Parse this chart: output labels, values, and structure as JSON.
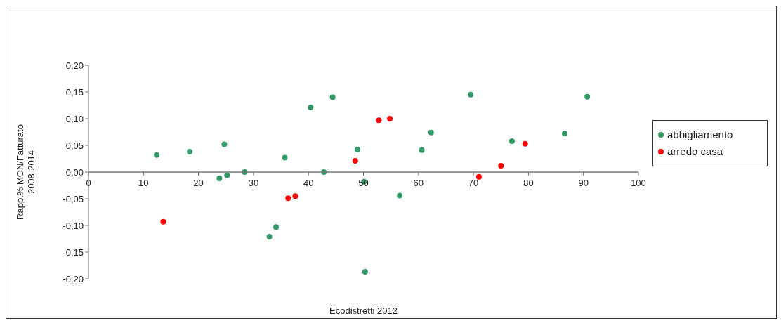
{
  "chart_data": {
    "type": "scatter",
    "xlabel": "Ecodistretti 2012",
    "ylabel": "Rapp.% MON/Fatturato\n2008-2014",
    "xlim": [
      0,
      100
    ],
    "xticks": [
      0,
      10,
      20,
      30,
      40,
      50,
      60,
      70,
      80,
      90,
      100
    ],
    "ylim": [
      -0.2,
      0.2
    ],
    "yticks": [
      {
        "value": -0.2,
        "label": "-0,20"
      },
      {
        "value": -0.15,
        "label": "-0,15"
      },
      {
        "value": -0.1,
        "label": "-0,10"
      },
      {
        "value": -0.05,
        "label": "-0,05"
      },
      {
        "value": 0,
        "label": "0,00"
      },
      {
        "value": 0.05,
        "label": "0,05"
      },
      {
        "value": 0.1,
        "label": "0,10"
      },
      {
        "value": 0.15,
        "label": "0,15"
      },
      {
        "value": 0.2,
        "label": "0,20"
      }
    ],
    "grid": false,
    "legend": "right",
    "marker": "circle",
    "series": [
      {
        "name": "abbigliamento",
        "color": "#339966",
        "x": [
          12.4,
          18.4,
          23.8,
          24.7,
          25.2,
          28.4,
          32.9,
          34.1,
          35.7,
          40.4,
          42.8,
          44.4,
          48.9,
          50.1,
          50.3,
          56.6,
          60.6,
          62.3,
          69.5,
          77.0,
          86.6,
          90.7
        ],
        "values": [
          0.032,
          0.038,
          -0.012,
          0.052,
          -0.006,
          0.0,
          -0.121,
          -0.103,
          0.027,
          0.121,
          0.0,
          0.14,
          0.042,
          -0.018,
          -0.187,
          -0.044,
          0.041,
          0.074,
          0.145,
          0.058,
          0.072,
          0.141
        ]
      },
      {
        "name": "arredo casa",
        "color": "#ff0000",
        "x": [
          13.6,
          36.3,
          37.6,
          48.5,
          52.8,
          54.8,
          71.0,
          75.0,
          79.4
        ],
        "values": [
          -0.093,
          -0.049,
          -0.045,
          0.021,
          0.097,
          0.1,
          -0.009,
          0.012,
          0.053
        ]
      }
    ]
  }
}
